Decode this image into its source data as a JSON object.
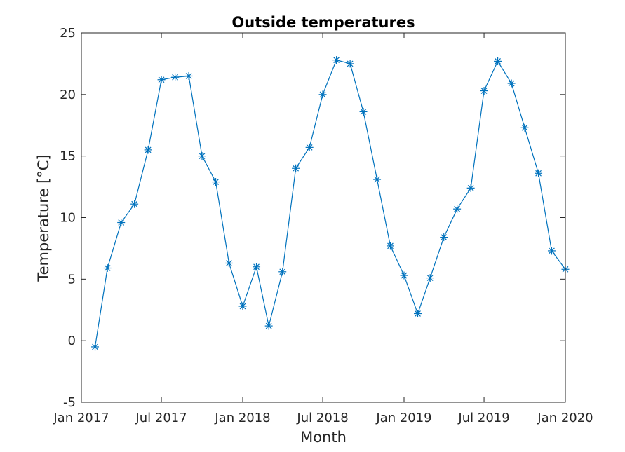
{
  "chart_data": {
    "type": "line",
    "title": "Outside temperatures",
    "xlabel": "Month",
    "ylabel": "Temperature [°C]",
    "marker": "asterisk",
    "color": "#0072bd",
    "ylim": [
      -5,
      25
    ],
    "yticks": [
      -5,
      0,
      5,
      10,
      15,
      20,
      25
    ],
    "xlim": [
      "2017-01-01",
      "2020-01-01"
    ],
    "xticks": [
      {
        "date": "2017-01-01",
        "label": "Jan 2017"
      },
      {
        "date": "2017-07-01",
        "label": "Jul 2017"
      },
      {
        "date": "2018-01-01",
        "label": "Jan 2018"
      },
      {
        "date": "2018-07-01",
        "label": "Jul 2018"
      },
      {
        "date": "2019-01-01",
        "label": "Jan 2019"
      },
      {
        "date": "2019-07-01",
        "label": "Jul 2019"
      },
      {
        "date": "2020-01-01",
        "label": "Jan 2020"
      }
    ],
    "x": [
      "2017-02-01",
      "2017-03-01",
      "2017-04-01",
      "2017-05-01",
      "2017-06-01",
      "2017-07-01",
      "2017-08-01",
      "2017-09-01",
      "2017-10-01",
      "2017-11-01",
      "2017-12-01",
      "2018-01-01",
      "2018-02-01",
      "2018-03-01",
      "2018-04-01",
      "2018-05-01",
      "2018-06-01",
      "2018-07-01",
      "2018-08-01",
      "2018-09-01",
      "2018-10-01",
      "2018-11-01",
      "2018-12-01",
      "2019-01-01",
      "2019-02-01",
      "2019-03-01",
      "2019-04-01",
      "2019-05-01",
      "2019-06-01",
      "2019-07-01",
      "2019-08-01",
      "2019-09-01",
      "2019-10-01",
      "2019-11-01",
      "2019-12-01",
      "2020-01-01"
    ],
    "values": [
      -0.5,
      5.9,
      9.6,
      11.1,
      15.5,
      21.2,
      21.4,
      21.5,
      15.0,
      12.9,
      6.3,
      2.8,
      6.0,
      1.2,
      5.6,
      14.0,
      15.7,
      20.0,
      22.8,
      22.5,
      18.6,
      13.1,
      7.7,
      5.3,
      2.2,
      5.1,
      8.4,
      10.7,
      12.4,
      20.3,
      22.7,
      20.9,
      17.3,
      13.6,
      7.3,
      5.8
    ]
  }
}
